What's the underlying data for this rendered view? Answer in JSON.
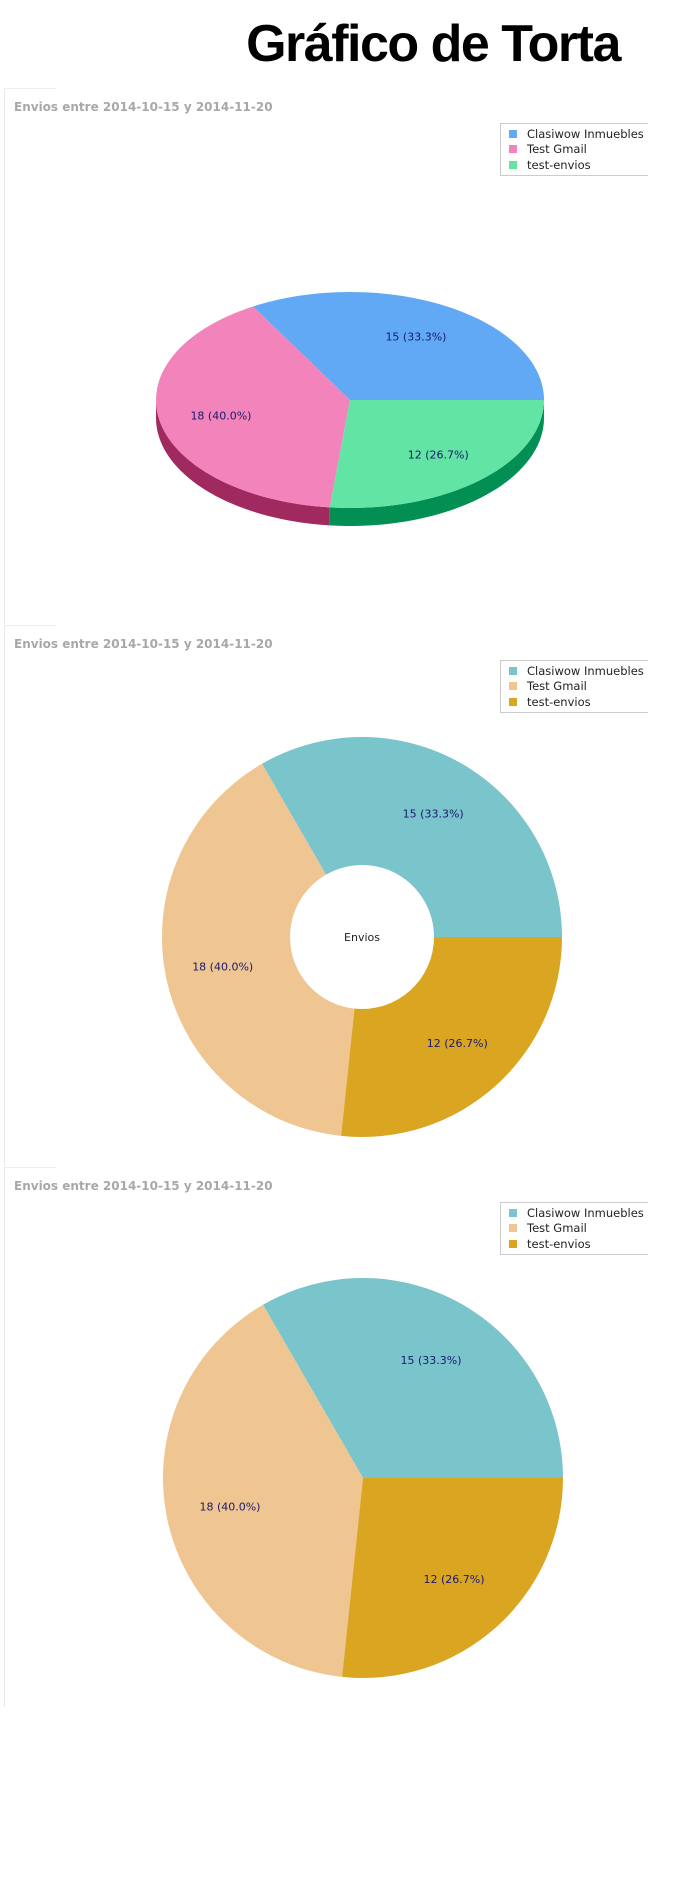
{
  "page": {
    "title": "Gráfico de Torta"
  },
  "chart_data": [
    {
      "type": "pie",
      "variant": "3d",
      "title": "Envios entre 2014-10-15 y 2014-11-20",
      "legend_position": "top-right",
      "categories": [
        "Clasiwow Inmuebles",
        "Test Gmail",
        "test-envios"
      ],
      "values": [
        15,
        18,
        12
      ],
      "labels": [
        "15 (33.3%)",
        "18 (40.0%)",
        "12 (26.7%)"
      ],
      "colors": [
        "#61a9f4",
        "#f284bb",
        "#61e4a4"
      ],
      "side_colors": [
        "#3a78b8",
        "#a0295f",
        "#038f53"
      ]
    },
    {
      "type": "pie",
      "variant": "donut",
      "title": "Envios entre 2014-10-15 y 2014-11-20",
      "center_label": "Envios",
      "legend_position": "top-right",
      "categories": [
        "Clasiwow Inmuebles",
        "Test Gmail",
        "test-envios"
      ],
      "values": [
        15,
        18,
        12
      ],
      "labels": [
        "15 (33.3%)",
        "18 (40.0%)",
        "12 (26.7%)"
      ],
      "colors": [
        "#7ac4cc",
        "#efc592",
        "#daa521"
      ]
    },
    {
      "type": "pie",
      "variant": "flat",
      "title": "Envios entre 2014-10-15 y 2014-11-20",
      "legend_position": "top-right",
      "categories": [
        "Clasiwow Inmuebles",
        "Test Gmail",
        "test-envios"
      ],
      "values": [
        15,
        18,
        12
      ],
      "labels": [
        "15 (33.3%)",
        "18 (40.0%)",
        "12 (26.7%)"
      ],
      "colors": [
        "#7ac4cc",
        "#efc592",
        "#daa521"
      ]
    }
  ]
}
